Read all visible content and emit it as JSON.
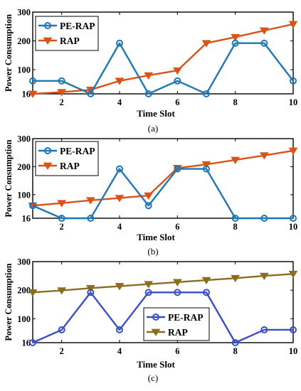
{
  "chart_data": [
    {
      "type": "line",
      "caption": "(a)",
      "xlabel": "Time Slot",
      "ylabel": "Power Consumption",
      "xlim": [
        1,
        10
      ],
      "ylim": [
        16,
        300
      ],
      "xticks": [
        2,
        4,
        6,
        8,
        10
      ],
      "yticks": [
        16,
        100,
        200,
        300
      ],
      "grid": false,
      "legend_position": "top-left",
      "x": [
        1,
        2,
        3,
        4,
        5,
        6,
        7,
        8,
        9,
        10
      ],
      "series": [
        {
          "name": "PE-RAP",
          "color": "#1f77b4",
          "marker": "circle",
          "values": [
            61,
            61,
            16,
            192,
            16,
            61,
            16,
            192,
            192,
            61
          ]
        },
        {
          "name": "RAP",
          "color": "#d95319",
          "marker": "triangle-down",
          "values": [
            16,
            22,
            30,
            61,
            80,
            97,
            192,
            213,
            236,
            258
          ]
        }
      ]
    },
    {
      "type": "line",
      "caption": "(b)",
      "xlabel": "Time Slot",
      "ylabel": "Power Consumption",
      "xlim": [
        1,
        10
      ],
      "ylim": [
        16,
        300
      ],
      "xticks": [
        2,
        4,
        6,
        8,
        10
      ],
      "yticks": [
        16,
        100,
        200,
        300
      ],
      "grid": false,
      "legend_position": "top-left",
      "x": [
        1,
        2,
        3,
        4,
        5,
        6,
        7,
        8,
        9,
        10
      ],
      "series": [
        {
          "name": "PE-RAP",
          "color": "#1f77b4",
          "marker": "circle",
          "values": [
            61,
            16,
            16,
            192,
            61,
            192,
            192,
            16,
            16,
            16
          ]
        },
        {
          "name": "RAP",
          "color": "#d95319",
          "marker": "triangle-down",
          "values": [
            61,
            70,
            80,
            88,
            97,
            195,
            208,
            224,
            240,
            257
          ]
        }
      ]
    },
    {
      "type": "line",
      "caption": "(c)",
      "xlabel": "Time Slot",
      "ylabel": "Power Consumption",
      "xlim": [
        1,
        10
      ],
      "ylim": [
        16,
        300
      ],
      "xticks": [
        2,
        4,
        6,
        8,
        10
      ],
      "yticks": [
        16,
        100,
        200,
        300
      ],
      "grid": false,
      "legend_position": "bottom-right",
      "x": [
        1,
        2,
        3,
        4,
        5,
        6,
        7,
        8,
        9,
        10
      ],
      "series": [
        {
          "name": "PE-RAP",
          "color": "#3a4fc4",
          "marker": "circle",
          "values": [
            16,
            61,
            192,
            61,
            192,
            192,
            192,
            16,
            61,
            61
          ]
        },
        {
          "name": "RAP",
          "color": "#8c6d1f",
          "marker": "triangle-down",
          "values": [
            192,
            199,
            207,
            214,
            221,
            228,
            235,
            242,
            250,
            257
          ]
        }
      ]
    }
  ]
}
